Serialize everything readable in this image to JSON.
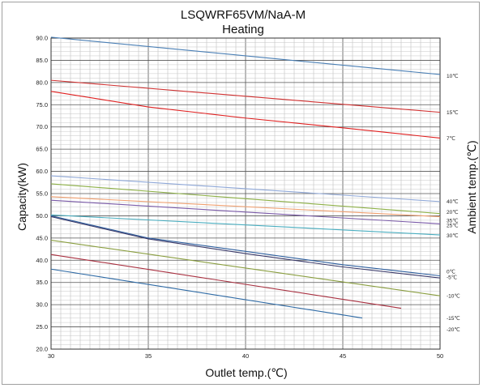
{
  "chart_data": {
    "type": "line",
    "title": "LSQWRF65VM/NaA-M",
    "subtitle": "Heating",
    "xlabel": "Outlet temp.(℃)",
    "ylabel": "Capacity(kW)",
    "ylabel_right": "Ambient temp.(℃)",
    "xlim": [
      30,
      50
    ],
    "ylim": [
      20,
      90
    ],
    "x_ticks": [
      "30",
      "35",
      "40",
      "45",
      "50"
    ],
    "y_ticks": [
      "20.0",
      "25.0",
      "30.0",
      "35.0",
      "40.0",
      "45.0",
      "50.0",
      "55.0",
      "60.0",
      "65.0",
      "70.0",
      "75.0",
      "80.0",
      "85.0",
      "90.0"
    ],
    "grid": true,
    "series": [
      {
        "name": "10℃",
        "color": "#4a7fb5",
        "x": [
          30,
          50
        ],
        "y": [
          90.2,
          81.8
        ],
        "label_y": 81.5
      },
      {
        "name": "15℃",
        "color": "#d03030",
        "x": [
          30,
          50
        ],
        "y": [
          80.5,
          73.3
        ],
        "label_y": 73.3
      },
      {
        "name": "7℃",
        "color": "#e02020",
        "x": [
          30,
          35,
          40,
          45,
          50
        ],
        "y": [
          78.0,
          74.5,
          72.0,
          69.8,
          67.5
        ],
        "label_y": 67.5
      },
      {
        "name": "40℃",
        "color": "#8fa8d8",
        "x": [
          30,
          50
        ],
        "y": [
          59.0,
          53.2
        ],
        "label_y": 53.3
      },
      {
        "name": "20℃",
        "color": "#8db046",
        "x": [
          30,
          50
        ],
        "y": [
          57.2,
          50.5
        ],
        "label_y": 50.9
      },
      {
        "name": "35℃",
        "color": "#f0a070",
        "x": [
          30,
          50
        ],
        "y": [
          54.3,
          49.8
        ],
        "label_y": 49.0
      },
      {
        "name": "25℃",
        "color": "#7a5aa8",
        "x": [
          30,
          50
        ],
        "y": [
          53.5,
          48.2
        ],
        "label_y": 47.9
      },
      {
        "name": "30℃",
        "color": "#4aaec0",
        "x": [
          30,
          50
        ],
        "y": [
          50.2,
          45.7
        ],
        "label_y": 45.6
      },
      {
        "name": "0℃",
        "color": "#2e5f9e",
        "x": [
          30,
          35,
          40,
          45,
          50
        ],
        "y": [
          50.0,
          45.0,
          42.0,
          39.0,
          36.5
        ],
        "label_y": 37.5
      },
      {
        "name": "-5℃",
        "color": "#3a3a6a",
        "x": [
          30,
          35,
          40,
          45,
          50
        ],
        "y": [
          49.8,
          44.8,
          41.5,
          38.5,
          36.0
        ],
        "label_y": 36.2
      },
      {
        "name": "-10℃",
        "color": "#8a9e40",
        "x": [
          30,
          50
        ],
        "y": [
          44.5,
          32.0
        ],
        "label_y": 32.0
      },
      {
        "name": "",
        "color": "#a83040",
        "x": [
          30,
          48
        ],
        "y": [
          41.3,
          29.2
        ]
      },
      {
        "name": "-15℃",
        "color": "#2e6aa5",
        "x": [
          30,
          46
        ],
        "y": [
          38.0,
          27.0
        ],
        "label_y": 27.0
      },
      {
        "name": "-20℃",
        "color": "",
        "x": [],
        "y": [],
        "label_y": 24.5
      }
    ]
  }
}
